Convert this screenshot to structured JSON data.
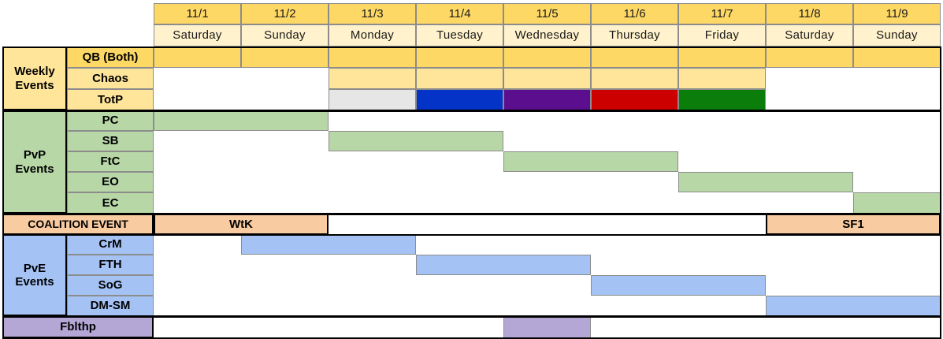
{
  "colors": {
    "header_date": "#fed865",
    "header_day": "#fff2cc",
    "weekly": "#ffe59a",
    "weekly_label": "#ffe599",
    "qb": "#fed865",
    "pvp": "#b7d7a7",
    "coalition": "#f8cba0",
    "pve": "#a4c2f4",
    "fblthp": "#b4a7d6",
    "totp_1": "#e6e6e6",
    "totp_2": "#0433c8",
    "totp_3": "#5b0f8e",
    "totp_4": "#cd0000",
    "totp_5": "#0a7d0a"
  },
  "dates": [
    "11/1",
    "11/2",
    "11/3",
    "11/4",
    "11/5",
    "11/6",
    "11/7",
    "11/8",
    "11/9"
  ],
  "days": [
    "Saturday",
    "Sunday",
    "Monday",
    "Tuesday",
    "Wednesday",
    "Thursday",
    "Friday",
    "Saturday",
    "Sunday"
  ],
  "groups": {
    "weekly": "Weekly Events",
    "pvp": "PvP Events",
    "pve": "PvE Events"
  },
  "rows": {
    "qb": "QB (Both)",
    "chaos": "Chaos",
    "totp": "TotP",
    "pc": "PC",
    "sb": "SB",
    "ftc": "FtC",
    "eo": "EO",
    "ec": "EC",
    "coalition": "COALITION EVENT",
    "crm": "CrM",
    "fth": "FTH",
    "sog": "SoG",
    "dmsm": "DM-SM",
    "fblthp": "Fblthp"
  },
  "coalition_events": {
    "wtk": "WtK",
    "sf1": "SF1"
  },
  "schedule": {
    "qb": {
      "start_day": 1,
      "end_day": 9
    },
    "chaos": {
      "start_day": 3,
      "end_day": 7
    },
    "totp_days": [
      3,
      4,
      5,
      6,
      7
    ],
    "pc": {
      "start_day": 1,
      "end_day": 2
    },
    "sb": {
      "start_day": 3,
      "end_day": 4
    },
    "ftc": {
      "start_day": 5,
      "end_day": 6
    },
    "eo": {
      "start_day": 7,
      "end_day": 8
    },
    "ec": {
      "start_day": 9,
      "end_day": 9
    },
    "wtk": {
      "start_day": 1,
      "end_day": 2
    },
    "sf1": {
      "start_day": 8,
      "end_day": 9
    },
    "crm": {
      "start_day": 2,
      "end_day": 3
    },
    "fth": {
      "start_day": 4,
      "end_day": 5
    },
    "sog": {
      "start_day": 6,
      "end_day": 7
    },
    "dmsm": {
      "start_day": 8,
      "end_day": 9
    },
    "fblthp": {
      "start_day": 5,
      "end_day": 5
    }
  }
}
